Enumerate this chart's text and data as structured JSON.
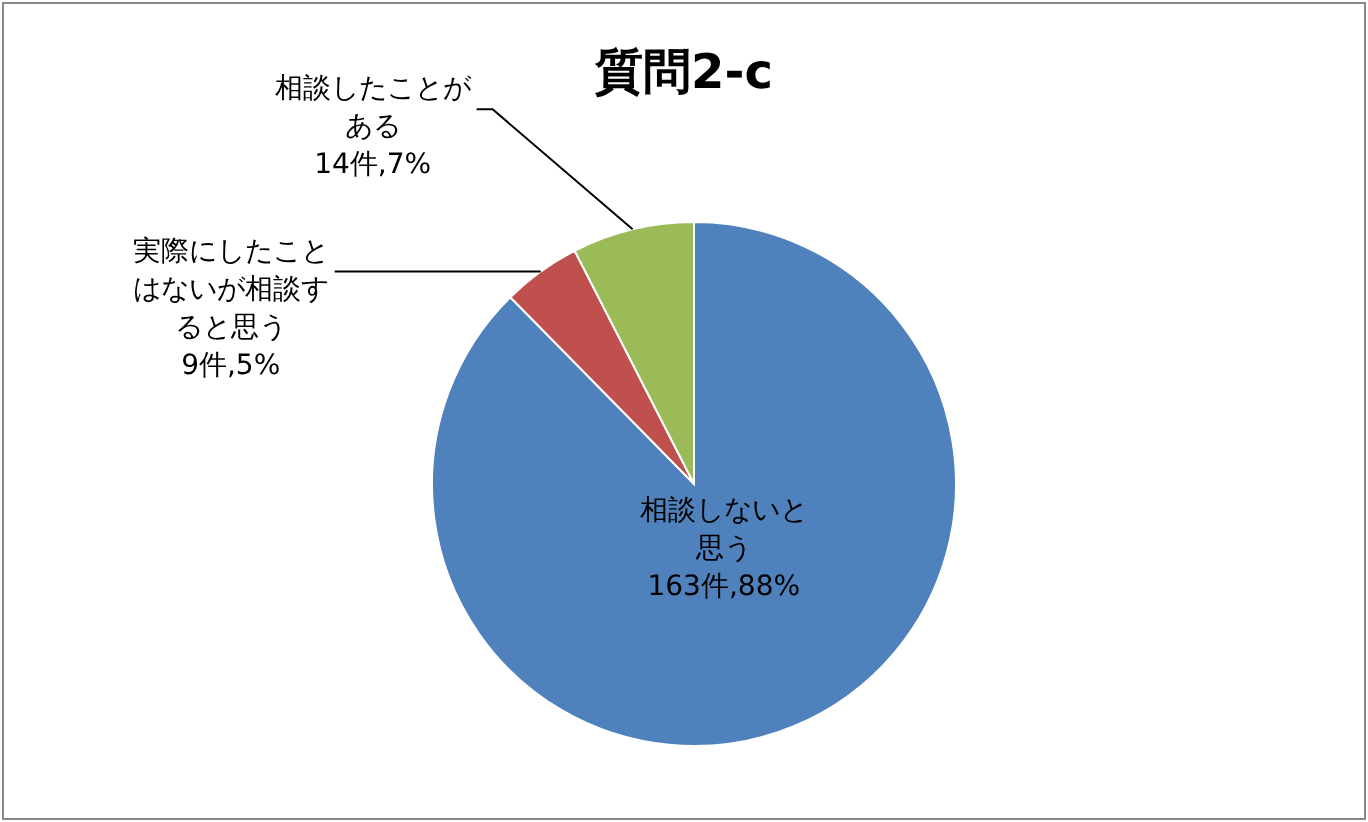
{
  "chart_data": {
    "type": "pie",
    "title": "質問2-c",
    "categories": [
      "相談しないと思う",
      "実際にしたことはないが相談すると思う",
      "相談したことがある"
    ],
    "values": [
      163,
      9,
      14
    ],
    "colors": [
      "#4f81bd",
      "#c0504d",
      "#9bbb59"
    ],
    "value_labels": [
      "163件,88%",
      "9件,5%",
      "14件,7%"
    ],
    "legend": false
  }
}
